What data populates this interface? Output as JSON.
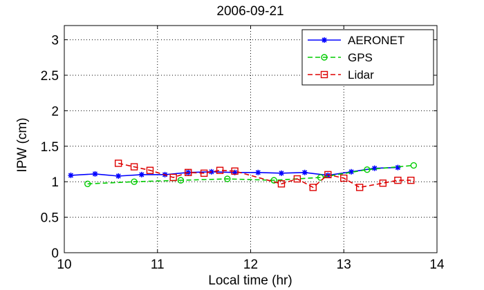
{
  "chart_data": {
    "type": "line",
    "title": "2006-09-21",
    "xlabel": "Local time (hr)",
    "ylabel": "IPW (cm)",
    "xlim": [
      10,
      14
    ],
    "ylim": [
      0,
      3.2
    ],
    "xticks": [
      10,
      11,
      12,
      13,
      14
    ],
    "xtick_labels": [
      "10",
      "11",
      "12",
      "13",
      "14"
    ],
    "yticks": [
      0,
      0.5,
      1,
      1.5,
      2,
      2.5,
      3
    ],
    "ytick_labels": [
      "0",
      "0.5",
      "1",
      "1.5",
      "2",
      "2.5",
      "3"
    ],
    "grid": true,
    "legend_position": "top-right",
    "series": [
      {
        "name": "AERONET",
        "color": "#0000ff",
        "marker": "star",
        "line_style": "solid",
        "x": [
          10.07,
          10.33,
          10.58,
          10.83,
          11.08,
          11.33,
          11.58,
          11.83,
          12.08,
          12.33,
          12.58,
          12.83,
          13.08,
          13.33,
          13.58
        ],
        "y": [
          1.09,
          1.11,
          1.08,
          1.1,
          1.1,
          1.13,
          1.14,
          1.13,
          1.13,
          1.12,
          1.13,
          1.09,
          1.14,
          1.19,
          1.2
        ]
      },
      {
        "name": "GPS",
        "color": "#00cc00",
        "marker": "circle",
        "line_style": "dashed",
        "x": [
          10.25,
          10.75,
          11.25,
          11.75,
          12.25,
          12.75,
          13.25,
          13.75
        ],
        "y": [
          0.97,
          1.0,
          1.02,
          1.04,
          1.02,
          1.06,
          1.17,
          1.23
        ]
      },
      {
        "name": "Lidar",
        "color": "#dd0000",
        "marker": "square",
        "line_style": "dashed",
        "x": [
          10.58,
          10.75,
          10.92,
          11.17,
          11.33,
          11.5,
          11.67,
          11.83,
          12.33,
          12.5,
          12.67,
          12.83,
          13.0,
          13.17,
          13.42,
          13.58,
          13.72
        ],
        "y": [
          1.26,
          1.21,
          1.16,
          1.06,
          1.13,
          1.12,
          1.16,
          1.15,
          0.97,
          1.04,
          0.92,
          1.1,
          1.05,
          0.92,
          0.98,
          1.02,
          1.02
        ]
      }
    ]
  }
}
